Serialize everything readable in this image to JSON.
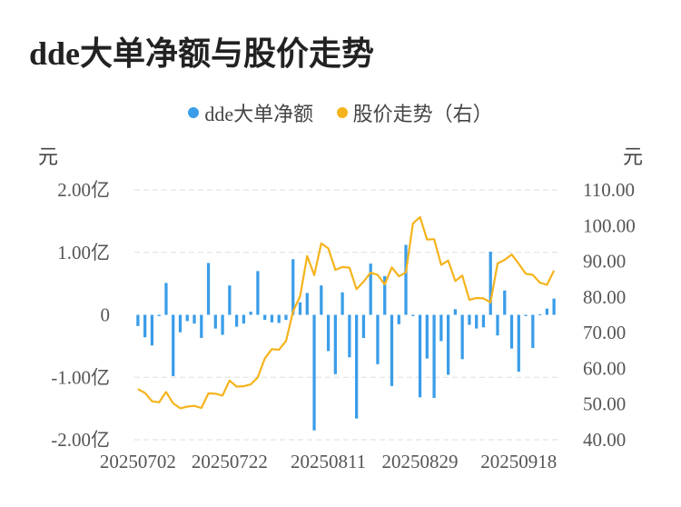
{
  "title": "dde大单净额与股价走势",
  "colors": {
    "bar": "#3a9de8",
    "line": "#f5b31c",
    "grid": "#dddddd"
  },
  "chart_data": {
    "type": "bar+line",
    "title": "dde大单净额与股价走势",
    "legend": {
      "position": "top-center",
      "items": [
        "dde大单净额",
        "股价走势（右）"
      ]
    },
    "grid": true,
    "left_axis": {
      "unit": "元",
      "range": [
        -2.0,
        2.0
      ],
      "ticks": [
        2.0,
        1.0,
        0,
        -1.0,
        -2.0
      ],
      "tick_labels": [
        "2.00亿",
        "1.00亿",
        "0",
        "-1.00亿",
        "-2.00亿"
      ]
    },
    "right_axis": {
      "unit": "元",
      "range": [
        40,
        110
      ],
      "ticks": [
        110,
        100,
        90,
        80,
        70,
        60,
        50,
        40
      ],
      "tick_labels": [
        "110.00",
        "100.00",
        "90.00",
        "80.00",
        "70.00",
        "60.00",
        "50.00",
        "40.00"
      ]
    },
    "x_tick_labels": [
      "20250702",
      "20250722",
      "20250811",
      "20250829",
      "20250918"
    ],
    "x_tick_indices": [
      0,
      13,
      27,
      40,
      54
    ],
    "series": [
      {
        "name": "dde大单净额",
        "type": "bar",
        "axis": "left",
        "values": [
          -0.18,
          -0.36,
          -0.49,
          -0.02,
          0.51,
          -0.98,
          -0.28,
          -0.1,
          -0.14,
          -0.37,
          0.83,
          -0.22,
          -0.32,
          0.47,
          -0.19,
          -0.14,
          0.05,
          0.7,
          -0.08,
          -0.12,
          -0.13,
          -0.08,
          0.89,
          0.2,
          0.35,
          -1.85,
          0.47,
          -0.58,
          -0.95,
          0.36,
          -0.68,
          -1.66,
          -0.37,
          0.82,
          -0.79,
          0.62,
          -1.14,
          -0.15,
          1.12,
          -0.02,
          -1.32,
          -0.7,
          -1.33,
          -0.42,
          -0.96,
          0.09,
          -0.71,
          -0.16,
          -0.22,
          -0.2,
          1.01,
          -0.33,
          0.39,
          -0.54,
          -0.91,
          -0.02,
          -0.53,
          0.01,
          0.1,
          0.26
        ]
      },
      {
        "name": "股价走势（右）",
        "type": "line",
        "axis": "right",
        "values": [
          54.2,
          53.1,
          50.8,
          50.5,
          53.4,
          50.2,
          48.8,
          49.3,
          49.5,
          48.9,
          53.0,
          52.9,
          52.4,
          56.6,
          54.9,
          55.0,
          55.5,
          57.5,
          62.8,
          65.4,
          65.2,
          67.7,
          76.0,
          80.2,
          91.5,
          86.1,
          95.0,
          93.6,
          87.6,
          88.4,
          88.2,
          82.2,
          84.3,
          86.8,
          86.2,
          83.5,
          88.3,
          85.8,
          86.9,
          100.6,
          102.4,
          96.1,
          96.2,
          89.0,
          90.2,
          84.5,
          86.0,
          79.2,
          79.7,
          79.6,
          78.5,
          89.4,
          90.4,
          91.9,
          89.3,
          86.5,
          86.2,
          84.0,
          83.4,
          87.4
        ]
      }
    ]
  }
}
